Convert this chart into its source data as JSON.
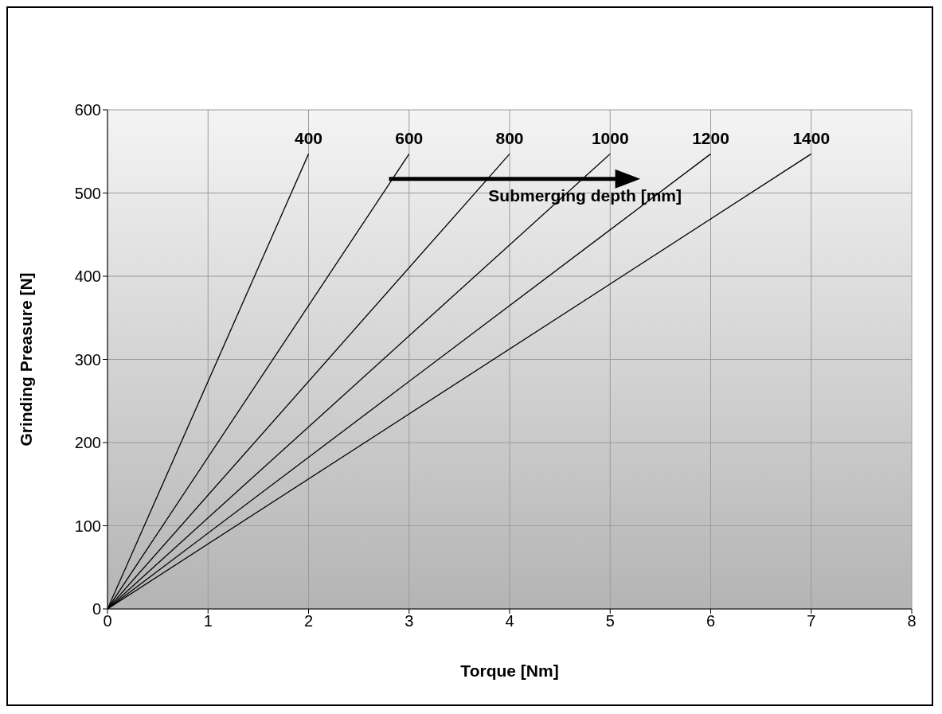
{
  "chart_data": {
    "type": "line",
    "xlabel": "Torque [Nm]",
    "ylabel": "Grinding Preasure [N]",
    "xlim": [
      0,
      8
    ],
    "xticks": [
      0,
      1,
      2,
      3,
      4,
      5,
      6,
      7,
      8
    ],
    "ylim": [
      0,
      600
    ],
    "yticks": [
      0,
      100,
      200,
      300,
      400,
      500,
      600
    ],
    "grid": true,
    "legend": false,
    "marker": "none",
    "line_style": "solid",
    "annotations": [
      "Submerging depth [mm]"
    ],
    "series": [
      {
        "name": "400",
        "color": "#000000",
        "x": [
          0,
          2
        ],
        "values": [
          0,
          547
        ]
      },
      {
        "name": "600",
        "color": "#000000",
        "x": [
          0,
          3
        ],
        "values": [
          0,
          547
        ]
      },
      {
        "name": "800",
        "color": "#000000",
        "x": [
          0,
          4
        ],
        "values": [
          0,
          547
        ]
      },
      {
        "name": "1000",
        "color": "#000000",
        "x": [
          0,
          5
        ],
        "values": [
          0,
          547
        ]
      },
      {
        "name": "1200",
        "color": "#000000",
        "x": [
          0,
          6
        ],
        "values": [
          0,
          547
        ]
      },
      {
        "name": "1400",
        "color": "#000000",
        "x": [
          0,
          7
        ],
        "values": [
          0,
          547
        ]
      }
    ]
  }
}
